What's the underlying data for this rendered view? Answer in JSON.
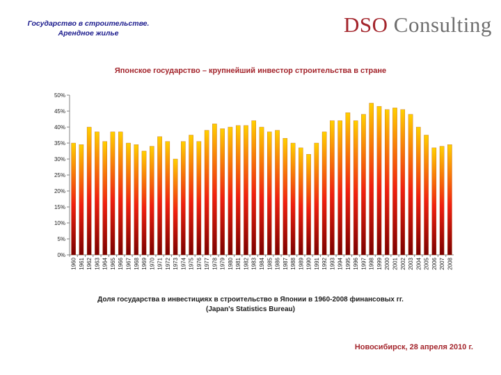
{
  "header": {
    "title_line1": "Государство в строительстве.",
    "title_line2": "Арендное жилье"
  },
  "logo": {
    "part1": "DSO",
    "part2": " Consulting"
  },
  "chart_data": {
    "type": "bar",
    "title": "Японское государство – крупнейший инвестор строительства в стране",
    "categories": [
      "1960",
      "1961",
      "1962",
      "1963",
      "1964",
      "1965",
      "1966",
      "1967",
      "1968",
      "1969",
      "1970",
      "1971",
      "1972",
      "1973",
      "1974",
      "1975",
      "1976",
      "1977",
      "1978",
      "1979",
      "1980",
      "1981",
      "1982",
      "1983",
      "1984",
      "1985",
      "1986",
      "1987",
      "1988",
      "1989",
      "1990",
      "1991",
      "1992",
      "1993",
      "1994",
      "1995",
      "1996",
      "1997",
      "1998",
      "1999",
      "2000",
      "2001",
      "2002",
      "2003",
      "2004",
      "2005",
      "2006",
      "2007",
      "2008"
    ],
    "values": [
      35,
      34.5,
      40,
      38.5,
      35.5,
      38.5,
      38.5,
      35,
      34.5,
      32.5,
      34,
      37,
      35.5,
      30,
      35.5,
      37.5,
      35.5,
      39,
      41,
      39.5,
      40,
      40.5,
      40.5,
      42,
      40,
      38.5,
      39,
      36.5,
      35,
      33.5,
      31.5,
      35,
      38.5,
      42,
      42,
      44.5,
      42,
      44,
      47.5,
      46.5,
      45.5,
      46,
      45.5,
      44,
      40,
      37.5,
      33.5,
      34,
      34.5
    ],
    "yticks": [
      "0%",
      "5%",
      "10%",
      "15%",
      "20%",
      "25%",
      "30%",
      "35%",
      "40%",
      "45%",
      "50%"
    ],
    "ylim": [
      0,
      50
    ],
    "unit": "%",
    "grid": false,
    "colors": {
      "bar_top": "#ffd000",
      "bar_mid": "#f02010",
      "bar_bottom": "#7a0000"
    }
  },
  "caption": {
    "line1": "Доля государства в инвестициях в строительство в Японии в 1960-2008 финансовых гг.",
    "line2": "(Japan's Statistics Bureau)"
  },
  "footer": {
    "date": "Новосибирск, 28 апреля 2010 г."
  }
}
